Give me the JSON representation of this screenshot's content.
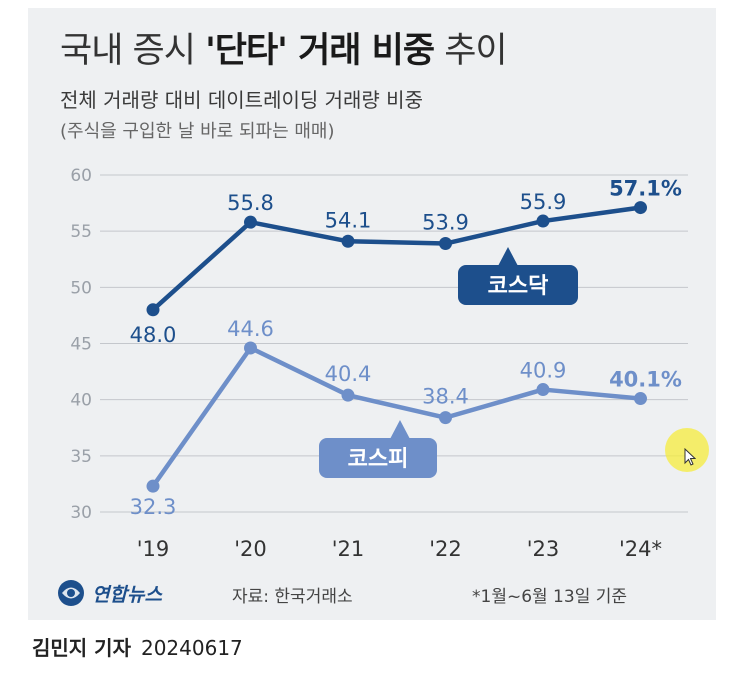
{
  "header": {
    "title_prefix": "국내 증시 ",
    "title_highlight": "'단타' 거래 비중",
    "title_suffix": " 추이",
    "subtitle": "전체 거래량 대비 데이트레이딩 거래량 비중",
    "note": "(주식을 구입한 날 바로 되파는 매매)"
  },
  "footer": {
    "logo_text": "연합뉴스",
    "source": "자료: 한국거래소",
    "footnote": "*1월~6월 13일 기준"
  },
  "byline": {
    "author": "김민지 기자",
    "date": "20240617"
  },
  "colors": {
    "kosdaq": "#1d4f8c",
    "kospi": "#6e8fc9",
    "background": "#eef0f2",
    "grid": "#c4c7cc"
  },
  "chart_data": {
    "type": "line",
    "categories": [
      "'19",
      "'20",
      "'21",
      "'22",
      "'23",
      "'24*"
    ],
    "ylim": [
      30,
      60
    ],
    "yticks": [
      30,
      35,
      40,
      45,
      50,
      55,
      60
    ],
    "grid": true,
    "series": [
      {
        "name": "코스닥",
        "values": [
          48.0,
          55.8,
          54.1,
          53.9,
          55.9,
          57.1
        ],
        "labels": [
          "48.0",
          "55.8",
          "54.1",
          "53.9",
          "55.9",
          "57.1%"
        ]
      },
      {
        "name": "코스피",
        "values": [
          32.3,
          44.6,
          40.4,
          38.4,
          40.9,
          40.1
        ],
        "labels": [
          "32.3",
          "44.6",
          "40.4",
          "38.4",
          "40.9",
          "40.1%"
        ]
      }
    ]
  }
}
